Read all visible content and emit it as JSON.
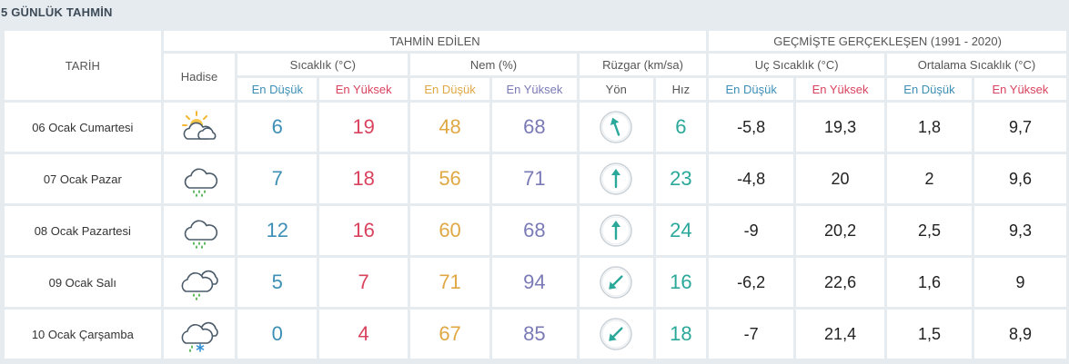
{
  "title": "5 GÜNLÜK TAHMİN",
  "headers": {
    "tarih": "TARİH",
    "hadise": "Hadise",
    "tahmin": "TAHMİN EDİLEN",
    "gecmis": "GEÇMİŞTE GERÇEKLEŞEN (1991 - 2020)",
    "sicaklik": "Sıcaklık (°C)",
    "nem": "Nem (%)",
    "ruzgar": "Rüzgar (km/sa)",
    "uc": "Uç Sıcaklık (°C)",
    "ort": "Ortalama Sıcaklık (°C)",
    "en_dusuk": "En Düşük",
    "en_yuksek": "En Yüksek",
    "yon": "Yön",
    "hiz": "Hız"
  },
  "rows": [
    {
      "date": "06 Ocak Cumartesi",
      "icon": "partly-cloudy-sun-icon",
      "t_low": "6",
      "t_high": "19",
      "h_low": "48",
      "h_high": "68",
      "wind_dir_deg": 340,
      "wind_speed": "6",
      "uc_low": "-5,8",
      "uc_high": "19,3",
      "ort_low": "1,8",
      "ort_high": "9,7"
    },
    {
      "date": "07 Ocak Pazar",
      "icon": "rain-icon",
      "t_low": "7",
      "t_high": "18",
      "h_low": "56",
      "h_high": "71",
      "wind_dir_deg": 0,
      "wind_speed": "23",
      "uc_low": "-4,8",
      "uc_high": "20",
      "ort_low": "2",
      "ort_high": "9,6"
    },
    {
      "date": "08 Ocak Pazartesi",
      "icon": "rain-icon",
      "t_low": "12",
      "t_high": "16",
      "h_low": "60",
      "h_high": "68",
      "wind_dir_deg": 0,
      "wind_speed": "24",
      "uc_low": "-9",
      "uc_high": "20,2",
      "ort_low": "2,5",
      "ort_high": "9,3"
    },
    {
      "date": "09 Ocak Salı",
      "icon": "cloudy-rain-icon",
      "t_low": "5",
      "t_high": "7",
      "h_low": "71",
      "h_high": "94",
      "wind_dir_deg": 225,
      "wind_speed": "16",
      "uc_low": "-6,2",
      "uc_high": "22,6",
      "ort_low": "1,6",
      "ort_high": "9"
    },
    {
      "date": "10 Ocak Çarşamba",
      "icon": "sleet-icon",
      "t_low": "0",
      "t_high": "4",
      "h_low": "67",
      "h_high": "85",
      "wind_dir_deg": 225,
      "wind_speed": "18",
      "uc_low": "-7",
      "uc_high": "21,4",
      "ort_low": "1,5",
      "ort_high": "8,9"
    }
  ],
  "colors": {
    "temp_low": "#3d8fb6",
    "temp_high": "#d9435e",
    "hum_low": "#e0a844",
    "hum_high": "#7a7ab6",
    "wind": "#2aa89a"
  }
}
